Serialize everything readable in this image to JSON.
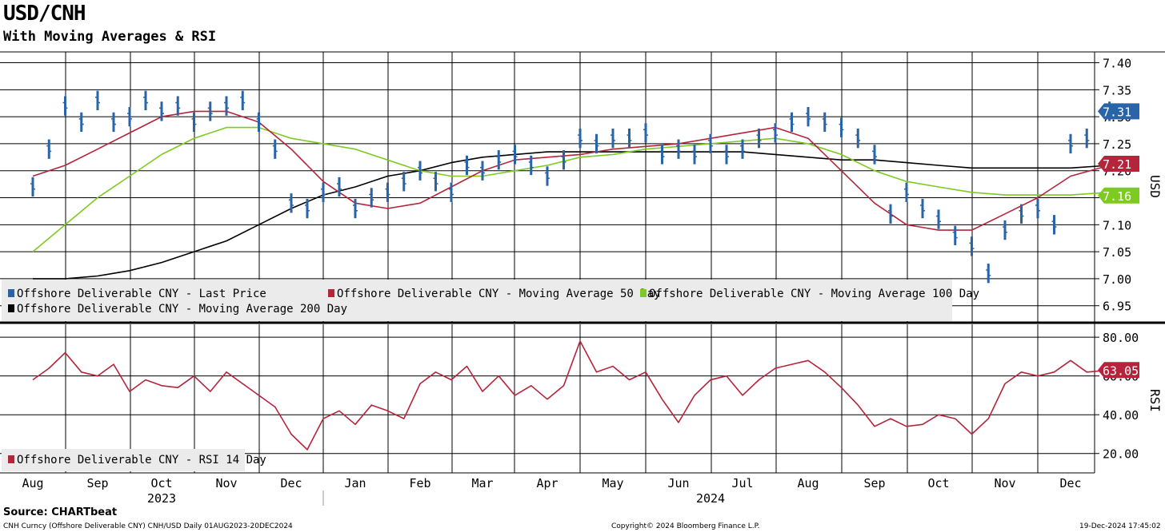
{
  "header": {
    "title": "USD/CNH",
    "subtitle": "With Moving Averages & RSI"
  },
  "footer": {
    "source": "Source: CHARTbeat",
    "security": "CNH Curncy (Offshore Deliverable CNY) CNH/USD  Daily 01AUG2023-20DEC2024",
    "copyright": "Copyright© 2024 Bloomberg Finance L.P.",
    "timestamp": "19-Dec-2024 17:45:02"
  },
  "colors": {
    "price": "#2a64a8",
    "ma50": "#b5243a",
    "ma100": "#7ccb1e",
    "ma200": "#000000",
    "rsi": "#b5243a",
    "legend_bg": "#ebebeb"
  },
  "chart_data": [
    {
      "type": "line",
      "panel": "price",
      "ylabel": "USD",
      "ylim": [
        6.92,
        7.42
      ],
      "yticks": [
        "7.40",
        "7.35",
        "7.30",
        "7.25",
        "7.20",
        "7.15",
        "7.10",
        "7.05",
        "7.00",
        "6.95"
      ],
      "grid": true,
      "x_month_labels": [
        "Aug",
        "Sep",
        "Oct",
        "Nov",
        "Dec",
        "Jan",
        "Feb",
        "Mar",
        "Apr",
        "May",
        "Jun",
        "Jul",
        "Aug",
        "Sep",
        "Oct",
        "Nov",
        "Dec"
      ],
      "x_year_labels": [
        "2023",
        "2024"
      ],
      "last_value_labels": [
        {
          "series": "Last Price",
          "text": "7.31",
          "value": 7.31
        },
        {
          "series": "MA50",
          "text": "7.21",
          "value": 7.21
        },
        {
          "series": "MA100",
          "text": "7.16",
          "value": 7.16
        }
      ],
      "legend_position": "bottom-left",
      "series": [
        {
          "name": "Offshore Deliverable CNY - Last Price",
          "key": "price",
          "style": "bar",
          "x": [
            0.0,
            0.25,
            0.5,
            0.75,
            1.0,
            1.25,
            1.5,
            1.75,
            2.0,
            2.25,
            2.5,
            2.75,
            3.0,
            3.25,
            3.5,
            3.75,
            4.0,
            4.25,
            4.5,
            4.75,
            5.0,
            5.25,
            5.5,
            5.75,
            6.0,
            6.25,
            6.5,
            6.75,
            7.0,
            7.25,
            7.5,
            7.75,
            8.0,
            8.25,
            8.5,
            8.75,
            9.0,
            9.25,
            9.5,
            9.75,
            10.0,
            10.25,
            10.5,
            10.75,
            11.0,
            11.25,
            11.5,
            11.75,
            12.0,
            12.25,
            12.5,
            12.75,
            13.0,
            13.25,
            13.5,
            13.75,
            14.0,
            14.25,
            14.5,
            14.75,
            15.0,
            15.25,
            15.5,
            15.75,
            16.0,
            16.25,
            16.6
          ],
          "values": [
            7.17,
            7.24,
            7.32,
            7.29,
            7.33,
            7.29,
            7.3,
            7.33,
            7.31,
            7.32,
            7.29,
            7.31,
            7.32,
            7.33,
            7.29,
            7.24,
            7.14,
            7.13,
            7.16,
            7.17,
            7.13,
            7.15,
            7.16,
            7.18,
            7.2,
            7.18,
            7.16,
            7.21,
            7.2,
            7.22,
            7.23,
            7.21,
            7.19,
            7.22,
            7.26,
            7.25,
            7.26,
            7.26,
            7.27,
            7.23,
            7.24,
            7.23,
            7.25,
            7.23,
            7.24,
            7.26,
            7.27,
            7.29,
            7.3,
            7.29,
            7.28,
            7.26,
            7.23,
            7.12,
            7.16,
            7.13,
            7.11,
            7.08,
            7.06,
            7.01,
            7.09,
            7.12,
            7.13,
            7.1,
            7.25,
            7.26,
            7.31
          ]
        },
        {
          "name": "Offshore Deliverable CNY - Moving Average 50 Day",
          "key": "ma50",
          "x": [
            0.0,
            0.5,
            1.0,
            1.5,
            2.0,
            2.5,
            3.0,
            3.5,
            4.0,
            4.5,
            5.0,
            5.5,
            6.0,
            6.5,
            7.0,
            7.5,
            8.0,
            8.5,
            9.0,
            9.5,
            10.0,
            10.5,
            11.0,
            11.5,
            12.0,
            12.5,
            13.0,
            13.5,
            14.0,
            14.5,
            15.0,
            15.5,
            16.0,
            16.6
          ],
          "values": [
            7.19,
            7.21,
            7.24,
            7.27,
            7.3,
            7.31,
            7.31,
            7.29,
            7.24,
            7.18,
            7.14,
            7.13,
            7.14,
            7.17,
            7.2,
            7.22,
            7.225,
            7.23,
            7.24,
            7.245,
            7.25,
            7.26,
            7.27,
            7.28,
            7.26,
            7.2,
            7.14,
            7.1,
            7.09,
            7.09,
            7.12,
            7.15,
            7.19,
            7.21
          ]
        },
        {
          "name": "Offshore Deliverable CNY - Moving Average 100 Day",
          "key": "ma100",
          "x": [
            0.0,
            0.5,
            1.0,
            1.5,
            2.0,
            2.5,
            3.0,
            3.5,
            4.0,
            4.5,
            5.0,
            5.5,
            6.0,
            6.5,
            7.0,
            7.5,
            8.0,
            8.5,
            9.0,
            9.5,
            10.0,
            10.5,
            11.0,
            11.5,
            12.0,
            12.5,
            13.0,
            13.5,
            14.0,
            14.5,
            15.0,
            15.5,
            16.0,
            16.6
          ],
          "values": [
            7.05,
            7.1,
            7.15,
            7.19,
            7.23,
            7.26,
            7.28,
            7.28,
            7.26,
            7.25,
            7.24,
            7.22,
            7.2,
            7.19,
            7.19,
            7.2,
            7.21,
            7.225,
            7.23,
            7.24,
            7.245,
            7.25,
            7.255,
            7.26,
            7.25,
            7.23,
            7.2,
            7.18,
            7.17,
            7.16,
            7.155,
            7.155,
            7.155,
            7.16
          ]
        },
        {
          "name": "Offshore Deliverable CNY - Moving Average 200 Day",
          "key": "ma200",
          "x": [
            0.0,
            0.5,
            1.0,
            1.5,
            2.0,
            2.5,
            3.0,
            3.5,
            4.0,
            4.5,
            5.0,
            5.5,
            6.0,
            6.5,
            7.0,
            7.5,
            8.0,
            8.5,
            9.0,
            9.5,
            10.0,
            10.5,
            11.0,
            11.5,
            12.0,
            12.5,
            13.0,
            13.5,
            14.0,
            14.5,
            15.0,
            15.5,
            16.0,
            16.6
          ],
          "values": [
            7.0,
            7.0,
            7.005,
            7.015,
            7.03,
            7.05,
            7.07,
            7.1,
            7.13,
            7.155,
            7.17,
            7.19,
            7.2,
            7.215,
            7.225,
            7.23,
            7.235,
            7.235,
            7.235,
            7.235,
            7.235,
            7.235,
            7.235,
            7.23,
            7.225,
            7.22,
            7.22,
            7.215,
            7.21,
            7.205,
            7.205,
            7.205,
            7.205,
            7.21
          ]
        }
      ]
    },
    {
      "type": "line",
      "panel": "rsi",
      "ylabel": "RSI",
      "ylim": [
        10,
        85
      ],
      "yticks": [
        "80.00",
        "60.00",
        "40.00",
        "20.00"
      ],
      "grid": true,
      "last_value_labels": [
        {
          "series": "RSI",
          "text": "63.05",
          "value": 63.05
        }
      ],
      "legend_position": "bottom-left",
      "series": [
        {
          "name": "Offshore Deliverable CNY - RSI 14 Day",
          "key": "rsi",
          "x": [
            0.0,
            0.25,
            0.5,
            0.75,
            1.0,
            1.25,
            1.5,
            1.75,
            2.0,
            2.25,
            2.5,
            2.75,
            3.0,
            3.25,
            3.5,
            3.75,
            4.0,
            4.25,
            4.5,
            4.75,
            5.0,
            5.25,
            5.5,
            5.75,
            6.0,
            6.25,
            6.5,
            6.75,
            7.0,
            7.25,
            7.5,
            7.75,
            8.0,
            8.25,
            8.5,
            8.75,
            9.0,
            9.25,
            9.5,
            9.75,
            10.0,
            10.25,
            10.5,
            10.75,
            11.0,
            11.25,
            11.5,
            11.75,
            12.0,
            12.25,
            12.5,
            12.75,
            13.0,
            13.25,
            13.5,
            13.75,
            14.0,
            14.25,
            14.5,
            14.75,
            15.0,
            15.25,
            15.5,
            15.75,
            16.0,
            16.25,
            16.6
          ],
          "values": [
            58,
            64,
            72,
            62,
            60,
            66,
            52,
            58,
            55,
            54,
            60,
            52,
            62,
            56,
            50,
            44,
            30,
            22,
            38,
            42,
            35,
            45,
            42,
            38,
            56,
            62,
            58,
            65,
            52,
            60,
            50,
            55,
            48,
            55,
            78,
            62,
            65,
            58,
            62,
            48,
            36,
            50,
            58,
            60,
            50,
            58,
            64,
            66,
            68,
            62,
            54,
            45,
            34,
            38,
            34,
            35,
            40,
            38,
            30,
            38,
            56,
            62,
            60,
            62,
            68,
            62,
            63.05
          ]
        }
      ]
    }
  ]
}
